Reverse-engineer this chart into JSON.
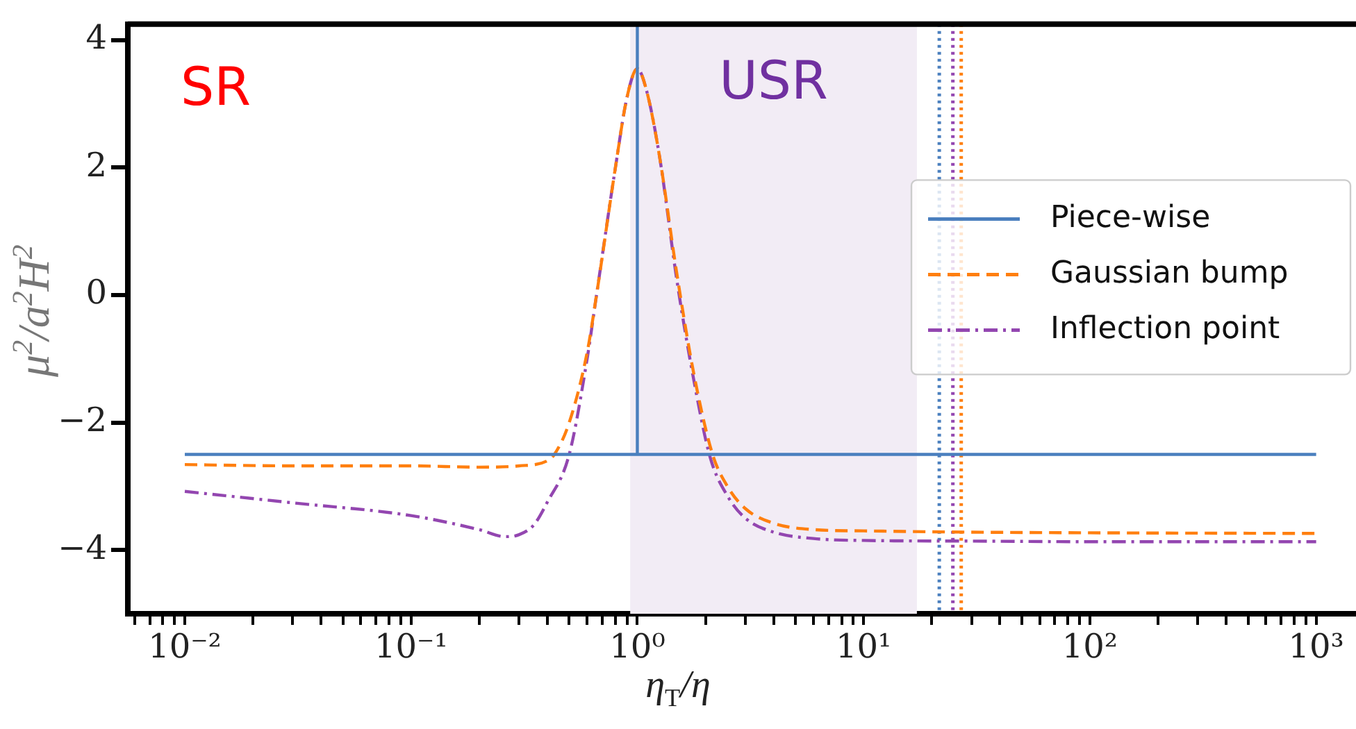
{
  "chart_data": {
    "type": "line",
    "xlabel": "η$_{T}$/η",
    "ylabel": "μ$^{2}$/a$^{2}$H$^{2}$",
    "log": "x",
    "xlim": [
      0.0056,
      1500
    ],
    "xticks": [
      {
        "value": 0.006,
        "label": null
      },
      {
        "value": 0.007,
        "label": null
      },
      {
        "value": 0.008,
        "label": null
      },
      {
        "value": 0.009,
        "label": null
      },
      {
        "value": 0.01,
        "label": "10⁻²"
      },
      {
        "value": 0.02,
        "label": null
      },
      {
        "value": 0.03,
        "label": null
      },
      {
        "value": 0.04,
        "label": null
      },
      {
        "value": 0.05,
        "label": null
      },
      {
        "value": 0.06,
        "label": null
      },
      {
        "value": 0.07,
        "label": null
      },
      {
        "value": 0.08,
        "label": null
      },
      {
        "value": 0.09,
        "label": null
      },
      {
        "value": 0.1,
        "label": "10⁻¹"
      },
      {
        "value": 0.2,
        "label": null
      },
      {
        "value": 0.3,
        "label": null
      },
      {
        "value": 0.4,
        "label": null
      },
      {
        "value": 0.5,
        "label": null
      },
      {
        "value": 0.6,
        "label": null
      },
      {
        "value": 0.7,
        "label": null
      },
      {
        "value": 0.8,
        "label": null
      },
      {
        "value": 0.9,
        "label": null
      },
      {
        "value": 1,
        "label": "10⁰"
      },
      {
        "value": 2,
        "label": null
      },
      {
        "value": 3,
        "label": null
      },
      {
        "value": 4,
        "label": null
      },
      {
        "value": 5,
        "label": null
      },
      {
        "value": 6,
        "label": null
      },
      {
        "value": 7,
        "label": null
      },
      {
        "value": 8,
        "label": null
      },
      {
        "value": 9,
        "label": null
      },
      {
        "value": 10,
        "label": "10¹"
      },
      {
        "value": 20,
        "label": null
      },
      {
        "value": 30,
        "label": null
      },
      {
        "value": 40,
        "label": null
      },
      {
        "value": 50,
        "label": null
      },
      {
        "value": 60,
        "label": null
      },
      {
        "value": 70,
        "label": null
      },
      {
        "value": 80,
        "label": null
      },
      {
        "value": 90,
        "label": null
      },
      {
        "value": 100,
        "label": "10²"
      },
      {
        "value": 200,
        "label": null
      },
      {
        "value": 300,
        "label": null
      },
      {
        "value": 400,
        "label": null
      },
      {
        "value": 500,
        "label": null
      },
      {
        "value": 600,
        "label": null
      },
      {
        "value": 700,
        "label": null
      },
      {
        "value": 800,
        "label": null
      },
      {
        "value": 900,
        "label": null
      },
      {
        "value": 1000,
        "label": "10³"
      }
    ],
    "ylim": [
      -5,
      4.25
    ],
    "yticks": [
      {
        "value": -4,
        "label": "−4"
      },
      {
        "value": -2,
        "label": "−2"
      },
      {
        "value": 0,
        "label": "0"
      },
      {
        "value": 2,
        "label": "2"
      },
      {
        "value": 4,
        "label": "4"
      }
    ],
    "grid": false,
    "legend": "right",
    "marker": "none",
    "series": [
      {
        "name": "Piece-wise",
        "color": "#4a7fbe",
        "line_style": "solid",
        "x": [
          0.01,
          1,
          1,
          1,
          1000
        ],
        "values": [
          -2.5,
          -2.5,
          4.25,
          -2.5,
          -2.5
        ]
      },
      {
        "name": "Gaussian bump",
        "color": "#ff7f0e",
        "line_style": "dashed",
        "x": [
          0.01,
          0.03,
          0.1,
          0.2,
          0.3,
          0.4,
          0.43,
          0.5,
          0.6,
          0.66,
          0.8,
          0.9,
          1,
          1.1,
          1.25,
          1.5,
          1.78,
          2.15,
          2.5,
          3,
          4,
          6,
          10,
          30,
          100,
          1000
        ],
        "values": [
          -2.66,
          -2.68,
          -2.68,
          -2.7,
          -2.68,
          -2.6,
          -2.5,
          -2.0,
          -0.9,
          0,
          2.0,
          3.1,
          3.55,
          3.2,
          2.2,
          0.3,
          -1.25,
          -2.5,
          -3.0,
          -3.35,
          -3.58,
          -3.68,
          -3.7,
          -3.72,
          -3.73,
          -3.74
        ]
      },
      {
        "name": "Inflection point",
        "color": "#9346b0",
        "line_style": "dashdot",
        "x": [
          0.01,
          0.03,
          0.1,
          0.2,
          0.26,
          0.3,
          0.35,
          0.4,
          0.5,
          0.6,
          0.66,
          0.8,
          0.9,
          1,
          1.1,
          1.25,
          1.5,
          1.78,
          2.1,
          2.5,
          3,
          4,
          6,
          10,
          30,
          100,
          1000
        ],
        "values": [
          -3.08,
          -3.26,
          -3.46,
          -3.68,
          -3.79,
          -3.76,
          -3.6,
          -3.25,
          -2.5,
          -1.0,
          0,
          2.0,
          3.1,
          3.55,
          3.2,
          2.2,
          0.2,
          -1.35,
          -2.55,
          -3.15,
          -3.5,
          -3.72,
          -3.82,
          -3.85,
          -3.86,
          -3.87,
          -3.87
        ]
      }
    ],
    "ref_lines": [
      {
        "axis": "x",
        "value": 21.6,
        "color": "#4a7fbe",
        "line_style": "dotted"
      },
      {
        "axis": "x",
        "value": 24.8,
        "color": "#9346b0",
        "line_style": "dotted"
      },
      {
        "axis": "x",
        "value": 27,
        "color": "#ff7f0e",
        "line_style": "dotted"
      }
    ],
    "bands": [
      {
        "axis": "x",
        "from": 0.93,
        "to": 17.2,
        "label": "USR",
        "color": "#f2ecf5"
      }
    ],
    "annotations": [
      "SR"
    ]
  }
}
